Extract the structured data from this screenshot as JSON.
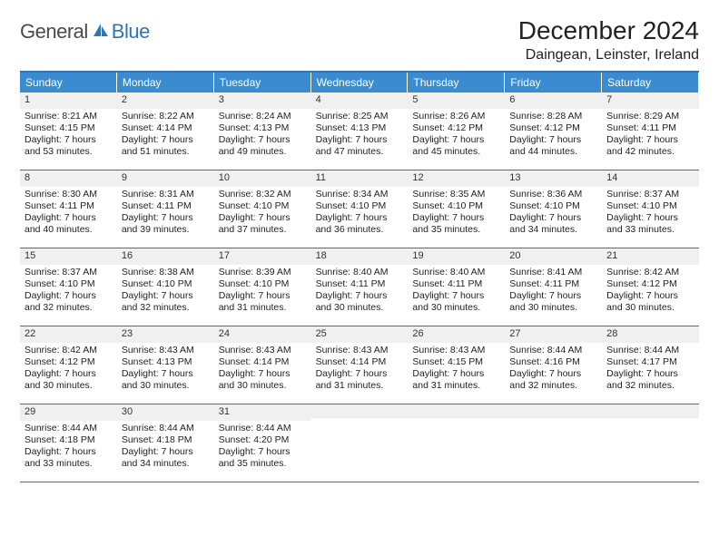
{
  "brand": {
    "part1": "General",
    "part2": "Blue"
  },
  "title": "December 2024",
  "location": "Daingean, Leinster, Ireland",
  "colors": {
    "accent": "#3b8bd0",
    "border": "#2f75b5",
    "dayStrip": "#f0f0f0",
    "text": "#222222",
    "logoGray": "#4a4a4a"
  },
  "dow": [
    "Sunday",
    "Monday",
    "Tuesday",
    "Wednesday",
    "Thursday",
    "Friday",
    "Saturday"
  ],
  "days": [
    {
      "n": 1,
      "sr": "8:21 AM",
      "ss": "4:15 PM",
      "dl": "7 hours and 53 minutes."
    },
    {
      "n": 2,
      "sr": "8:22 AM",
      "ss": "4:14 PM",
      "dl": "7 hours and 51 minutes."
    },
    {
      "n": 3,
      "sr": "8:24 AM",
      "ss": "4:13 PM",
      "dl": "7 hours and 49 minutes."
    },
    {
      "n": 4,
      "sr": "8:25 AM",
      "ss": "4:13 PM",
      "dl": "7 hours and 47 minutes."
    },
    {
      "n": 5,
      "sr": "8:26 AM",
      "ss": "4:12 PM",
      "dl": "7 hours and 45 minutes."
    },
    {
      "n": 6,
      "sr": "8:28 AM",
      "ss": "4:12 PM",
      "dl": "7 hours and 44 minutes."
    },
    {
      "n": 7,
      "sr": "8:29 AM",
      "ss": "4:11 PM",
      "dl": "7 hours and 42 minutes."
    },
    {
      "n": 8,
      "sr": "8:30 AM",
      "ss": "4:11 PM",
      "dl": "7 hours and 40 minutes."
    },
    {
      "n": 9,
      "sr": "8:31 AM",
      "ss": "4:11 PM",
      "dl": "7 hours and 39 minutes."
    },
    {
      "n": 10,
      "sr": "8:32 AM",
      "ss": "4:10 PM",
      "dl": "7 hours and 37 minutes."
    },
    {
      "n": 11,
      "sr": "8:34 AM",
      "ss": "4:10 PM",
      "dl": "7 hours and 36 minutes."
    },
    {
      "n": 12,
      "sr": "8:35 AM",
      "ss": "4:10 PM",
      "dl": "7 hours and 35 minutes."
    },
    {
      "n": 13,
      "sr": "8:36 AM",
      "ss": "4:10 PM",
      "dl": "7 hours and 34 minutes."
    },
    {
      "n": 14,
      "sr": "8:37 AM",
      "ss": "4:10 PM",
      "dl": "7 hours and 33 minutes."
    },
    {
      "n": 15,
      "sr": "8:37 AM",
      "ss": "4:10 PM",
      "dl": "7 hours and 32 minutes."
    },
    {
      "n": 16,
      "sr": "8:38 AM",
      "ss": "4:10 PM",
      "dl": "7 hours and 32 minutes."
    },
    {
      "n": 17,
      "sr": "8:39 AM",
      "ss": "4:10 PM",
      "dl": "7 hours and 31 minutes."
    },
    {
      "n": 18,
      "sr": "8:40 AM",
      "ss": "4:11 PM",
      "dl": "7 hours and 30 minutes."
    },
    {
      "n": 19,
      "sr": "8:40 AM",
      "ss": "4:11 PM",
      "dl": "7 hours and 30 minutes."
    },
    {
      "n": 20,
      "sr": "8:41 AM",
      "ss": "4:11 PM",
      "dl": "7 hours and 30 minutes."
    },
    {
      "n": 21,
      "sr": "8:42 AM",
      "ss": "4:12 PM",
      "dl": "7 hours and 30 minutes."
    },
    {
      "n": 22,
      "sr": "8:42 AM",
      "ss": "4:12 PM",
      "dl": "7 hours and 30 minutes."
    },
    {
      "n": 23,
      "sr": "8:43 AM",
      "ss": "4:13 PM",
      "dl": "7 hours and 30 minutes."
    },
    {
      "n": 24,
      "sr": "8:43 AM",
      "ss": "4:14 PM",
      "dl": "7 hours and 30 minutes."
    },
    {
      "n": 25,
      "sr": "8:43 AM",
      "ss": "4:14 PM",
      "dl": "7 hours and 31 minutes."
    },
    {
      "n": 26,
      "sr": "8:43 AM",
      "ss": "4:15 PM",
      "dl": "7 hours and 31 minutes."
    },
    {
      "n": 27,
      "sr": "8:44 AM",
      "ss": "4:16 PM",
      "dl": "7 hours and 32 minutes."
    },
    {
      "n": 28,
      "sr": "8:44 AM",
      "ss": "4:17 PM",
      "dl": "7 hours and 32 minutes."
    },
    {
      "n": 29,
      "sr": "8:44 AM",
      "ss": "4:18 PM",
      "dl": "7 hours and 33 minutes."
    },
    {
      "n": 30,
      "sr": "8:44 AM",
      "ss": "4:18 PM",
      "dl": "7 hours and 34 minutes."
    },
    {
      "n": 31,
      "sr": "8:44 AM",
      "ss": "4:20 PM",
      "dl": "7 hours and 35 minutes."
    }
  ],
  "labels": {
    "sunrise": "Sunrise:",
    "sunset": "Sunset:",
    "daylight": "Daylight:"
  },
  "trailingEmpty": 4
}
